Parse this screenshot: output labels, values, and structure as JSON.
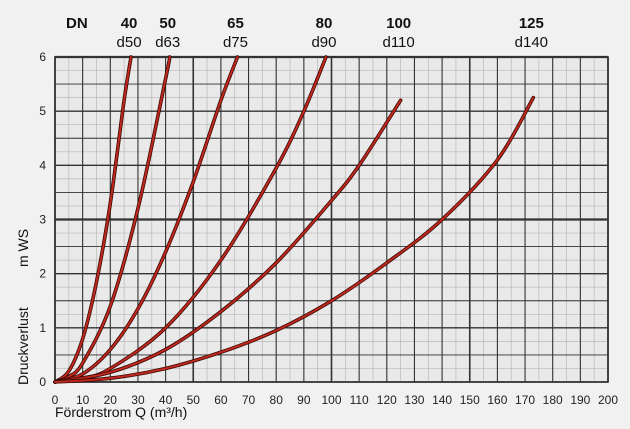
{
  "chart_data": {
    "type": "line",
    "header_label": "DN",
    "xlabel": "Förderstrom Q (m³/h)",
    "ylabel_text": "Druckverlust",
    "ylabel_unit": "m WS",
    "xlim": [
      0,
      200
    ],
    "ylim": [
      0,
      6
    ],
    "x_ticks": [
      "0",
      "10",
      "20",
      "30",
      "40",
      "50",
      "60",
      "70",
      "80",
      "90",
      "100",
      "110",
      "120",
      "130",
      "140",
      "150",
      "160",
      "170",
      "180",
      "190",
      "200"
    ],
    "y_ticks": [
      "0",
      "1",
      "2",
      "3",
      "4",
      "5",
      "6"
    ],
    "grid": true,
    "series": [
      {
        "dn": "40",
        "d": "d50",
        "color": "#c0281e",
        "x": [
          0,
          5,
          10,
          15,
          20,
          25,
          27.5
        ],
        "y": [
          0,
          0.2,
          0.8,
          1.85,
          3.3,
          5.2,
          6.0
        ]
      },
      {
        "dn": "50",
        "d": "d63",
        "color": "#c0281e",
        "x": [
          0,
          5,
          10,
          20,
          30,
          40,
          41.5
        ],
        "y": [
          0,
          0.1,
          0.35,
          1.4,
          3.2,
          5.6,
          6.0
        ]
      },
      {
        "dn": "65",
        "d": "d75",
        "color": "#c0281e",
        "x": [
          0,
          10,
          20,
          30,
          40,
          50,
          60,
          66
        ],
        "y": [
          0,
          0.15,
          0.6,
          1.35,
          2.4,
          3.7,
          5.2,
          6.0
        ]
      },
      {
        "dn": "80",
        "d": "d90",
        "color": "#c0281e",
        "x": [
          0,
          10,
          20,
          40,
          60,
          80,
          90,
          98
        ],
        "y": [
          0,
          0.07,
          0.25,
          1.0,
          2.25,
          3.95,
          5.0,
          6.0
        ]
      },
      {
        "dn": "100",
        "d": "d110",
        "color": "#c0281e",
        "x": [
          0,
          20,
          40,
          60,
          80,
          100,
          110,
          125
        ],
        "y": [
          0,
          0.18,
          0.6,
          1.3,
          2.2,
          3.35,
          4.0,
          5.2
        ]
      },
      {
        "dn": "125",
        "d": "d140",
        "color": "#c0281e",
        "x": [
          0,
          20,
          40,
          60,
          80,
          100,
          120,
          140,
          160,
          173
        ],
        "y": [
          0,
          0.07,
          0.25,
          0.55,
          0.95,
          1.5,
          2.2,
          3.0,
          4.1,
          5.25
        ]
      }
    ]
  }
}
